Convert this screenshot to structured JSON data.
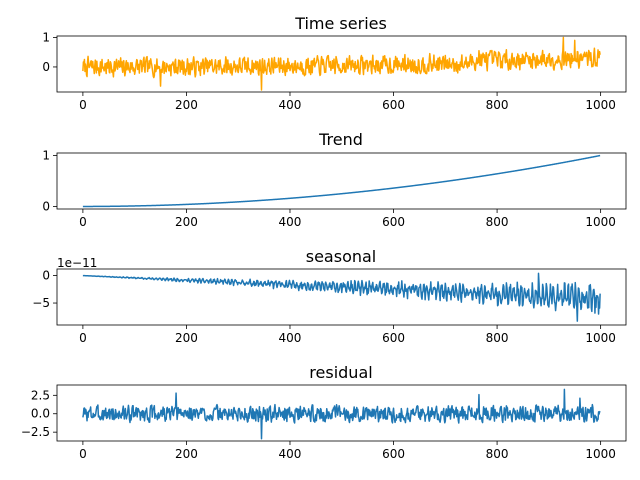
{
  "chart_data": [
    {
      "type": "line",
      "title": "Time series",
      "x_range": [
        0,
        999
      ],
      "xlim": [
        -50,
        1049
      ],
      "ylim": [
        -0.85,
        1.05
      ],
      "xticks": [
        0,
        200,
        400,
        600,
        800,
        1000
      ],
      "xtick_labels": [
        "0",
        "200",
        "400",
        "600",
        "800",
        "1000"
      ],
      "yticks": [
        0,
        1
      ],
      "ytick_labels": [
        "0",
        "1"
      ],
      "color": "#ffa500",
      "series": [
        {
          "trend_end": 0.1,
          "noise_amplitude": 0.3,
          "seed": 7,
          "extremes": [
            [
              150,
              -0.65
            ],
            [
              345,
              -0.78
            ],
            [
              765,
              0.55
            ],
            [
              928,
              1.0
            ],
            [
              950,
              0.9
            ]
          ]
        }
      ]
    },
    {
      "type": "line",
      "title": "Trend",
      "x_range": [
        0,
        999
      ],
      "xlim": [
        -50,
        1049
      ],
      "ylim": [
        -0.05,
        1.05
      ],
      "xticks": [
        0,
        200,
        400,
        600,
        800,
        1000
      ],
      "xtick_labels": [
        "0",
        "200",
        "400",
        "600",
        "800",
        "1000"
      ],
      "yticks": [
        0,
        1
      ],
      "ytick_labels": [
        "0",
        "1"
      ],
      "color": "#1f77b4",
      "series": [
        {
          "function": "quadratic",
          "y_start": 0,
          "y_end": 1.0
        }
      ]
    },
    {
      "type": "line",
      "title": "seasonal",
      "offset_label": "1e−11",
      "x_range": [
        0,
        999
      ],
      "xlim": [
        -50,
        1049
      ],
      "ylim": [
        -9,
        1.2
      ],
      "xticks": [
        0,
        200,
        400,
        600,
        800,
        1000
      ],
      "xtick_labels": [
        "0",
        "200",
        "400",
        "600",
        "800",
        "1000"
      ],
      "yticks": [
        0,
        -5
      ],
      "ytick_labels": [
        "0",
        "−5"
      ],
      "color": "#1f77b4",
      "series": [
        {
          "center_end": -4.2,
          "amplitude_end": 2.6,
          "seed": 11,
          "extremes": [
            [
              880,
              0.4
            ],
            [
              955,
              -8.3
            ]
          ]
        }
      ]
    },
    {
      "type": "line",
      "title": "residual",
      "x_range": [
        0,
        999
      ],
      "xlim": [
        -50,
        1049
      ],
      "ylim": [
        -3.7,
        3.9
      ],
      "xticks": [
        0,
        200,
        400,
        600,
        800,
        1000
      ],
      "xtick_labels": [
        "0",
        "200",
        "400",
        "600",
        "800",
        "1000"
      ],
      "yticks": [
        2.5,
        0,
        -2.5
      ],
      "ytick_labels": [
        "2.5",
        "0.0",
        "−2.5"
      ],
      "color": "#1f77b4",
      "series": [
        {
          "noise_amplitude": 0.95,
          "seed": 3,
          "extremes": [
            [
              180,
              2.8
            ],
            [
              345,
              -3.4
            ],
            [
              765,
              2.6
            ],
            [
              930,
              3.3
            ],
            [
              960,
              2.1
            ]
          ]
        }
      ]
    }
  ]
}
